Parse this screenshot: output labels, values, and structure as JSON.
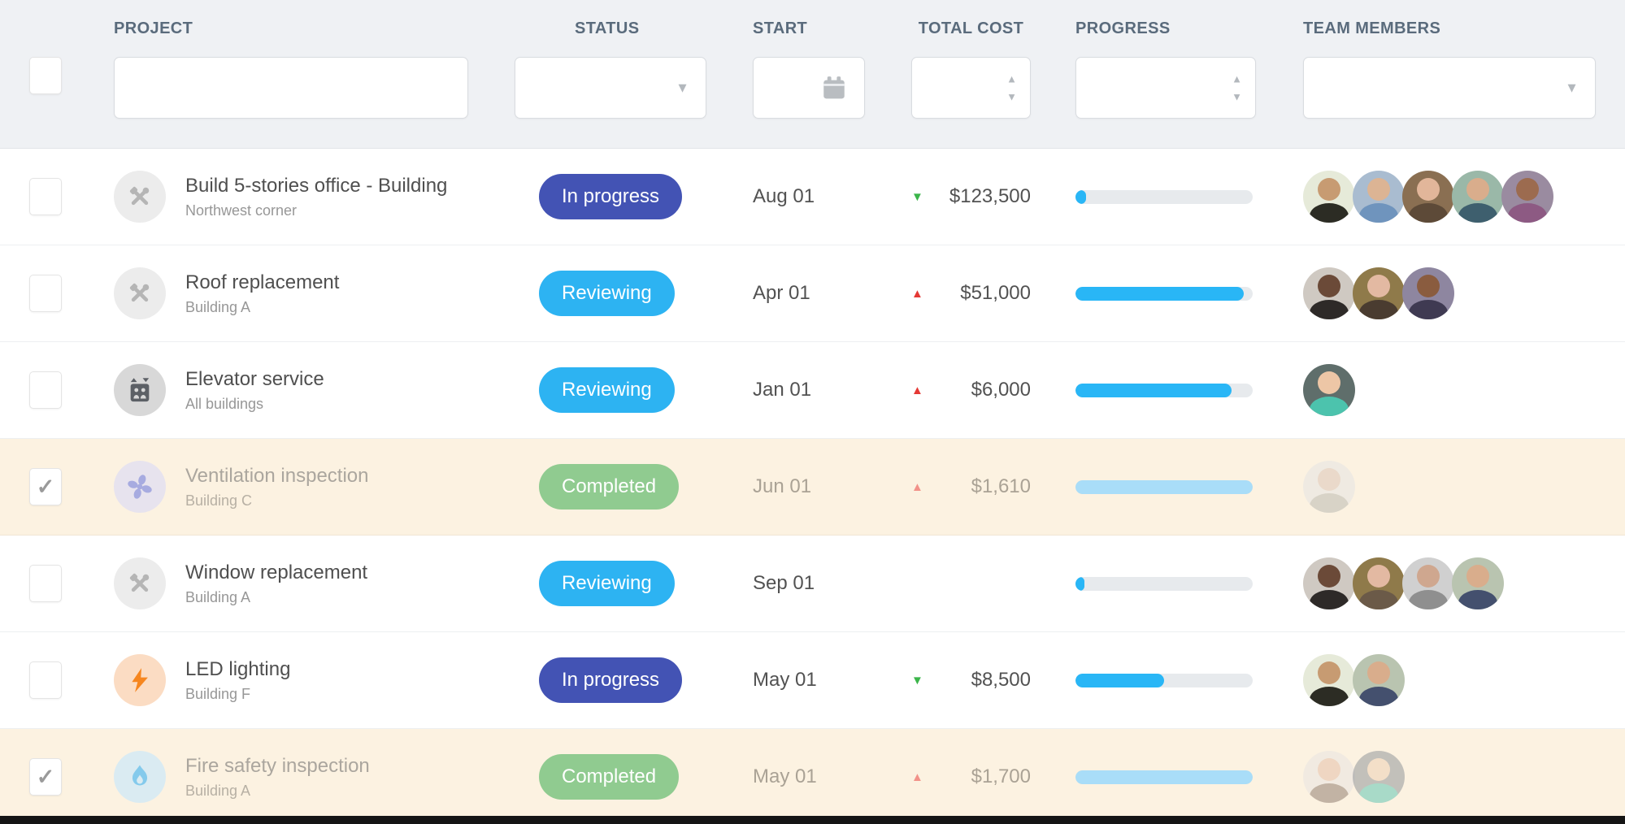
{
  "table": {
    "columns": {
      "project": "PROJECT",
      "status": "STATUS",
      "start": "START",
      "total_cost": "TOTAL COST",
      "progress": "PROGRESS",
      "team": "TEAM MEMBERS"
    },
    "filters": {
      "project_value": "",
      "status_value": "",
      "start_value": "",
      "total_cost_value": "",
      "progress_value": "",
      "team_value": ""
    },
    "status_colors": {
      "in_progress": "#4353b4",
      "reviewing": "#2db3f2",
      "completed": "#90cb90"
    },
    "progress_colors": {
      "active": "#29b6f6",
      "completed_light": "#a9ddf8"
    },
    "rows": [
      {
        "selected": false,
        "completed": false,
        "icon": "icon-tools",
        "icon_bg": "#ececec",
        "icon_color": "#b5b5b5",
        "title": "Build 5-stories office - Building",
        "subtitle": "Northwest corner",
        "status": {
          "label": "In progress",
          "color": "#4353b4"
        },
        "start": "Aug 01",
        "cost": {
          "trend": "down",
          "trend_color": "#3bb54a",
          "value": "$123,500"
        },
        "progress": 6,
        "progress_color": "#29b6f6",
        "team": [
          [
            "#e6ead9",
            "#c79b72",
            "#2c2c24"
          ],
          [
            "#a9bcd0",
            "#dcb494",
            "#6f94bd"
          ],
          [
            "#8a6f52",
            "#e2b69a",
            "#5d4a38"
          ],
          [
            "#9ab8a8",
            "#d9ad8c",
            "#3e5f6e"
          ],
          [
            "#9a8ba0",
            "#9c6b4f",
            "#8d5a83"
          ]
        ]
      },
      {
        "selected": false,
        "completed": false,
        "icon": "icon-tools",
        "icon_bg": "#ececec",
        "icon_color": "#b5b5b5",
        "title": "Roof replacement",
        "subtitle": "Building A",
        "status": {
          "label": "Reviewing",
          "color": "#2db3f2"
        },
        "start": "Apr 01",
        "cost": {
          "trend": "up",
          "trend_color": "#e53935",
          "value": "$51,000"
        },
        "progress": 95,
        "progress_color": "#29b6f6",
        "team": [
          [
            "#cfc9c2",
            "#6b4a38",
            "#2e2a28"
          ],
          [
            "#8f7a4a",
            "#e3b9a2",
            "#4a3c30"
          ],
          [
            "#8e86a0",
            "#8a5c3f",
            "#3f3a52"
          ]
        ]
      },
      {
        "selected": false,
        "completed": false,
        "icon": "icon-elevator",
        "icon_bg": "#d8d8d8",
        "icon_color": "#5c6066",
        "title": "Elevator service",
        "subtitle": "All buildings",
        "status": {
          "label": "Reviewing",
          "color": "#2db3f2"
        },
        "start": "Jan 01",
        "cost": {
          "trend": "up",
          "trend_color": "#e53935",
          "value": "$6,000"
        },
        "progress": 88,
        "progress_color": "#29b6f6",
        "team": [
          [
            "#5f6e6b",
            "#edc6a6",
            "#4cc3ad"
          ]
        ]
      },
      {
        "selected": true,
        "completed": true,
        "icon": "icon-fan",
        "icon_bg": "#dcdcf6",
        "icon_color": "#7b86e0",
        "title": "Ventilation inspection",
        "subtitle": "Building C",
        "status": {
          "label": "Completed",
          "color": "#90cb90"
        },
        "start": "Jun 01",
        "cost": {
          "trend": "up",
          "trend_color": "#f29289",
          "value": "$1,610"
        },
        "progress": 100,
        "progress_color": "#a9ddf8",
        "team": [
          [
            "#e3e3e3",
            "#d9c2b5",
            "#b5b5ae"
          ]
        ]
      },
      {
        "selected": false,
        "completed": false,
        "icon": "icon-tools",
        "icon_bg": "#ececec",
        "icon_color": "#b5b5b5",
        "title": "Window replacement",
        "subtitle": "Building A",
        "status": {
          "label": "Reviewing",
          "color": "#2db3f2"
        },
        "start": "Sep 01",
        "cost": null,
        "progress": 5,
        "progress_color": "#29b6f6",
        "team": [
          [
            "#cfc9c2",
            "#6b4a38",
            "#2e2a28"
          ],
          [
            "#8f7a4a",
            "#e3b9a2",
            "#6b5a48"
          ],
          [
            "#d0d0d0",
            "#cfa78f",
            "#8f8f8f"
          ],
          [
            "#b9c4b0",
            "#d9ad8c",
            "#44506e"
          ]
        ]
      },
      {
        "selected": false,
        "completed": false,
        "icon": "icon-bolt",
        "icon_bg": "#fbdcc3",
        "icon_color": "#f6861f",
        "title": "LED lighting",
        "subtitle": "Building F",
        "status": {
          "label": "In progress",
          "color": "#4353b4"
        },
        "start": "May 01",
        "cost": {
          "trend": "down",
          "trend_color": "#3bb54a",
          "value": "$8,500"
        },
        "progress": 50,
        "progress_color": "#29b6f6",
        "team": [
          [
            "#e6ead9",
            "#c79b72",
            "#2c2c24"
          ],
          [
            "#b9c4b0",
            "#d9ad8c",
            "#44506e"
          ]
        ]
      },
      {
        "selected": true,
        "completed": true,
        "icon": "icon-flame",
        "icon_bg": "#c9e8fc",
        "icon_color": "#45b6f2",
        "title": "Fire safety inspection",
        "subtitle": "Building A",
        "status": {
          "label": "Completed",
          "color": "#90cb90"
        },
        "start": "May 01",
        "cost": {
          "trend": "up",
          "trend_color": "#f29289",
          "value": "$1,700"
        },
        "progress": 100,
        "progress_color": "#a9ddf8",
        "team": [
          [
            "#e8e4e2",
            "#e3bba4",
            "#8a7668"
          ],
          [
            "#8a8f95",
            "#eccdb0",
            "#57c4b0"
          ]
        ]
      }
    ]
  },
  "icons": {
    "calendar": "calendar-icon",
    "select_arrow": "chevron-down-icon",
    "spinner_up": "spinner-up-icon",
    "spinner_down": "spinner-down-icon",
    "check": "✓",
    "arrow_up": "▲",
    "arrow_down": "▼"
  }
}
